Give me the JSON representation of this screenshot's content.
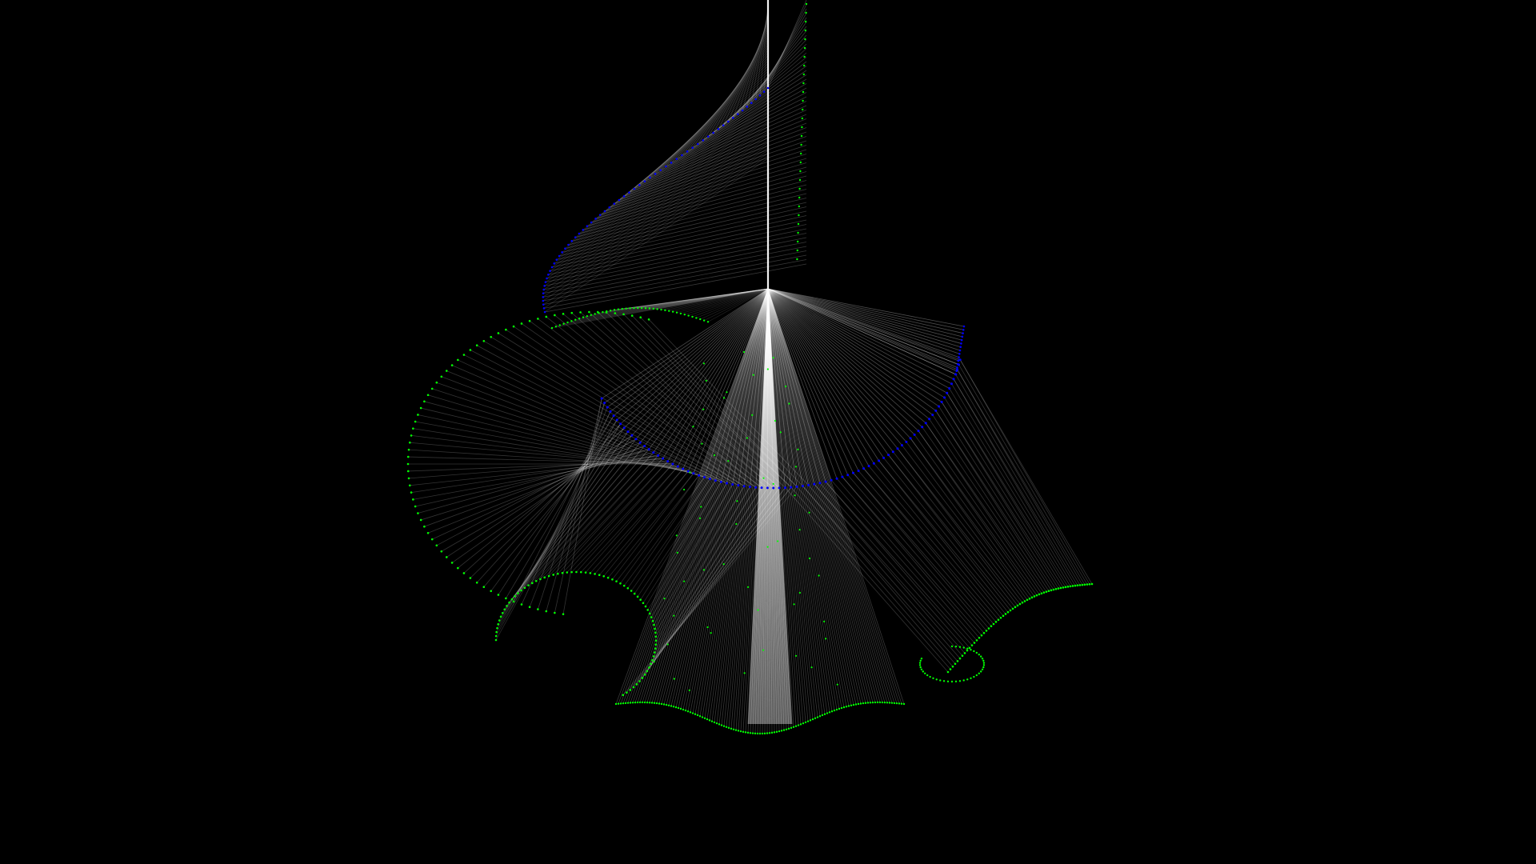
{
  "scene": {
    "description_label": "",
    "background_color": "#000000",
    "colors": {
      "line": "#ffffff",
      "bob_trail": "#00ff00",
      "pendulum_trail": "#0000ff",
      "rod": "#ffffff"
    },
    "elements": {
      "central_rod": "vertical-rod",
      "pivot": "pivot-point",
      "upper_arc": "blue-arc-upper",
      "lower_arc": "blue-arc-lower",
      "green_curves": "green-dot-curves",
      "string_lines": "white-string-lines"
    }
  }
}
